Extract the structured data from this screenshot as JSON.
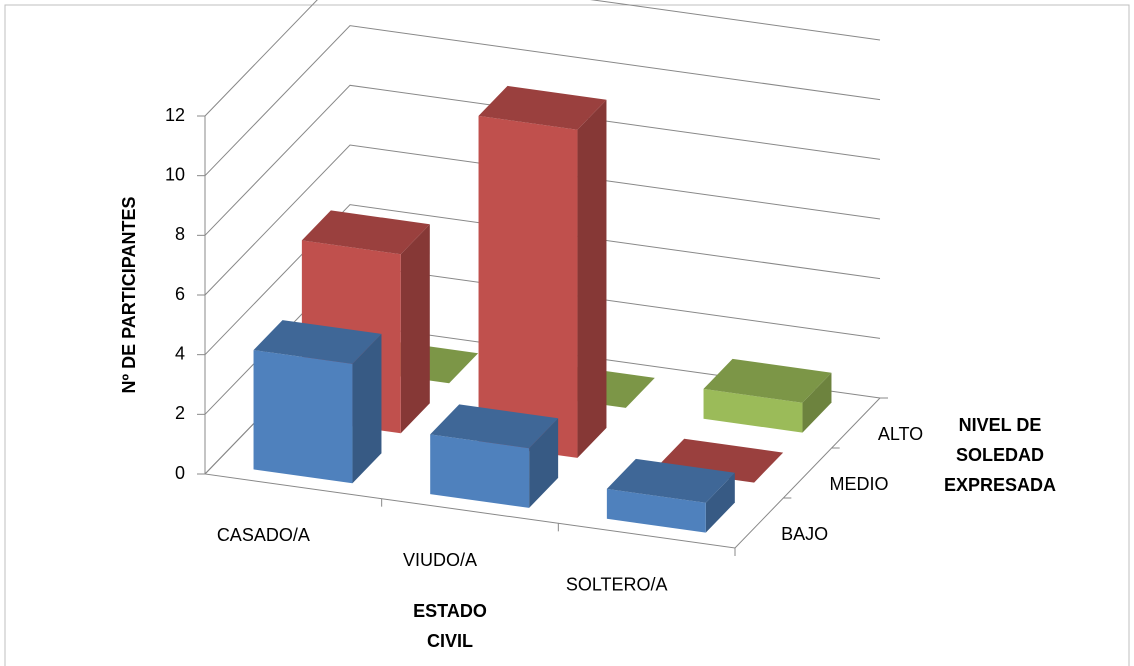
{
  "chart_data": {
    "type": "bar3d",
    "categories": [
      "CASADO/A",
      "VIUDO/A",
      "SOLTERO/A"
    ],
    "series": [
      {
        "name": "BAJO",
        "color": "#4f81bd",
        "values": [
          4,
          2,
          1
        ]
      },
      {
        "name": "MEDIO",
        "color": "#c0504d",
        "values": [
          6,
          11,
          0
        ]
      },
      {
        "name": "ALTO",
        "color": "#9bbb59",
        "values": [
          0,
          0,
          1
        ]
      }
    ],
    "ylim": [
      0,
      12
    ],
    "yticks": [
      0,
      2,
      4,
      6,
      8,
      10,
      12
    ],
    "grid": true,
    "y_label": "Nº DE PARTICIPANTES",
    "x_label": "ESTADO CIVIL",
    "z_label": "NIVEL DE SOLEDAD EXPRESADA"
  }
}
